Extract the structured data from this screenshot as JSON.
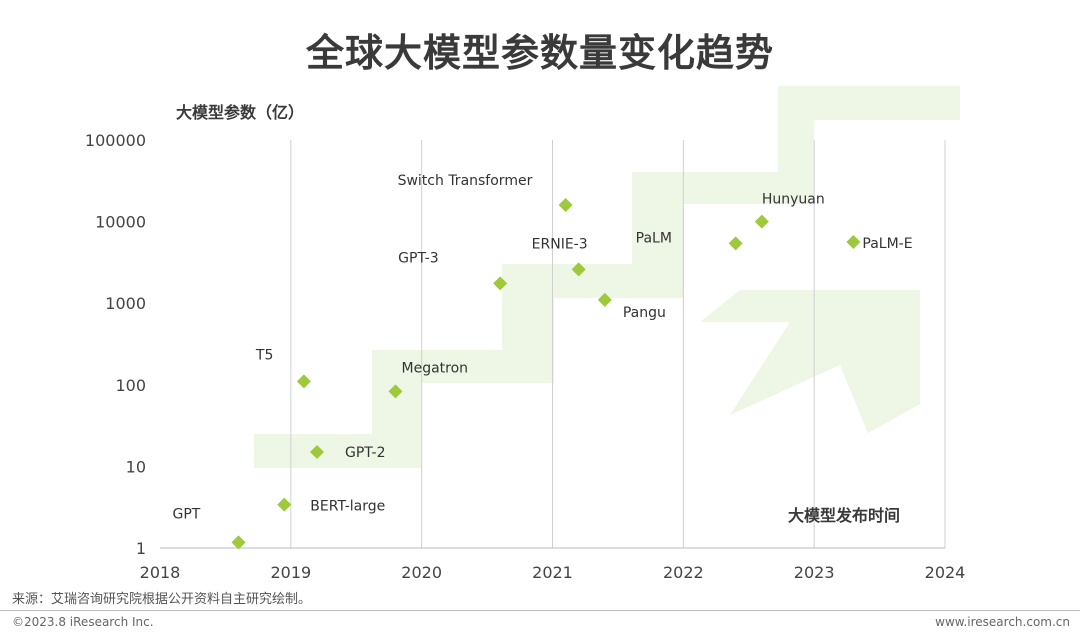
{
  "page": {
    "title": "全球大模型参数量变化趋势",
    "source": "来源：艾瑞咨询研究院根据公开资料自主研究绘制。",
    "copyright": "©2023.8 iResearch Inc.",
    "website": "www.iresearch.com.cn"
  },
  "colors": {
    "marker": "#9dc93b",
    "band": "#eef6e6",
    "gridline": "#d0d0d0",
    "axis": "#bbbbbb",
    "text": "#333333"
  },
  "chart_data": {
    "type": "scatter",
    "ylabel": "大模型参数（亿）",
    "xlabel": "大模型发布时间",
    "y_scale": "log",
    "ylim": [
      1,
      100000
    ],
    "xlim": [
      2018,
      2024
    ],
    "x_ticks": [
      "2018",
      "2019",
      "2020",
      "2021",
      "2022",
      "2023",
      "2024"
    ],
    "y_ticks": [
      "1",
      "10",
      "100",
      "1000",
      "10000",
      "100000"
    ],
    "grid": "vertical",
    "points": [
      {
        "label": "GPT",
        "x": 2018.6,
        "y": 1.17
      },
      {
        "label": "BERT-large",
        "x": 2018.95,
        "y": 3.4
      },
      {
        "label": "GPT-2",
        "x": 2019.2,
        "y": 15
      },
      {
        "label": "T5",
        "x": 2019.1,
        "y": 110
      },
      {
        "label": "Megatron",
        "x": 2019.8,
        "y": 83
      },
      {
        "label": "GPT-3",
        "x": 2020.6,
        "y": 1750
      },
      {
        "label": "Switch Transformer",
        "x": 2021.1,
        "y": 16000
      },
      {
        "label": "ERNIE-3",
        "x": 2021.2,
        "y": 2600
      },
      {
        "label": "Pangu",
        "x": 2021.4,
        "y": 1100
      },
      {
        "label": "PaLM",
        "x": 2022.4,
        "y": 5400
      },
      {
        "label": "Hunyuan",
        "x": 2022.6,
        "y": 10000
      },
      {
        "label": "PaLM-E",
        "x": 2023.3,
        "y": 5620
      }
    ]
  }
}
